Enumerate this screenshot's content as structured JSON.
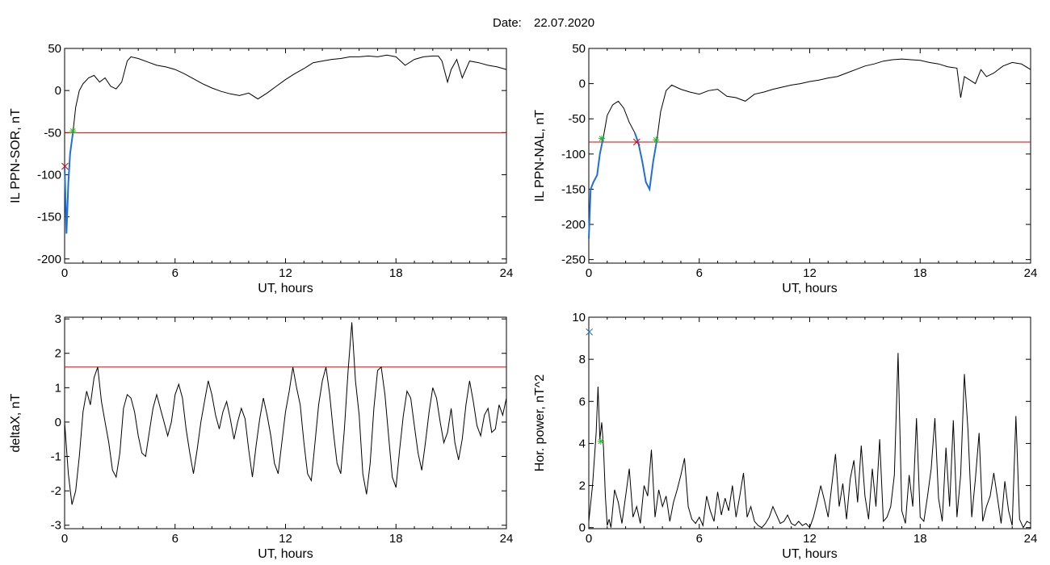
{
  "header": {
    "date_label": "Date:",
    "date_value": "22.07.2020"
  },
  "colors": {
    "data_line": "#000000",
    "threshold_line": "#e00000",
    "interval_line": "#1e6fd9",
    "start_marker": "#22bb22",
    "end_marker": "#e00000"
  },
  "chart_data": [
    {
      "type": "line",
      "xlabel": "UT, hours",
      "ylabel": "IL PPN-SOR, nT",
      "xlim": [
        0,
        24
      ],
      "ylim": [
        -205,
        50
      ],
      "xticks": [
        0,
        6,
        12,
        18,
        24
      ],
      "yticks": [
        -200,
        -150,
        -100,
        -50,
        0,
        50
      ],
      "threshold": -50,
      "x": [
        0,
        0.1,
        0.2,
        0.3,
        0.45,
        0.6,
        0.8,
        1.0,
        1.3,
        1.6,
        1.9,
        2.2,
        2.5,
        2.8,
        3.1,
        3.4,
        3.6,
        4.0,
        4.5,
        5.0,
        5.5,
        6.0,
        6.5,
        7.0,
        7.5,
        8.0,
        8.5,
        9.0,
        9.5,
        10.0,
        10.5,
        11.0,
        11.5,
        12.0,
        12.5,
        13.0,
        13.5,
        14.0,
        14.5,
        15.0,
        15.5,
        16.0,
        16.5,
        17.0,
        17.5,
        18.0,
        18.5,
        19.0,
        19.5,
        20.0,
        20.3,
        20.5,
        20.8,
        21.0,
        21.3,
        21.6,
        22.0,
        22.5,
        23.0,
        23.5,
        24.0
      ],
      "y": [
        -90,
        -170,
        -110,
        -75,
        -50,
        -20,
        0,
        8,
        15,
        18,
        10,
        15,
        5,
        2,
        10,
        35,
        40,
        38,
        34,
        30,
        28,
        25,
        20,
        14,
        8,
        3,
        -1,
        -4,
        -6,
        -3,
        -10,
        -3,
        5,
        13,
        20,
        26,
        33,
        35,
        37,
        38,
        40,
        40,
        41,
        40,
        42,
        40,
        30,
        37,
        40,
        41,
        41,
        35,
        10,
        25,
        37,
        15,
        35,
        33,
        30,
        28,
        25
      ],
      "interval_x": [
        0,
        0.1,
        0.2,
        0.3,
        0.45
      ],
      "interval_y": [
        -90,
        -170,
        -110,
        -75,
        -50
      ],
      "start_markers": [
        {
          "x": 0.45,
          "y": -48
        }
      ],
      "end_markers": [
        {
          "x": 0.02,
          "y": -90
        }
      ]
    },
    {
      "type": "line",
      "xlabel": "UT, hours",
      "ylabel": "IL PPN-NAL, nT",
      "xlim": [
        0,
        24
      ],
      "ylim": [
        -255,
        50
      ],
      "xticks": [
        0,
        6,
        12,
        18,
        24
      ],
      "yticks": [
        -250,
        -200,
        -150,
        -100,
        -50,
        0,
        50
      ],
      "threshold": -83,
      "x": [
        0,
        0.1,
        0.25,
        0.45,
        0.6,
        0.8,
        1.0,
        1.3,
        1.6,
        1.9,
        2.2,
        2.5,
        2.7,
        2.9,
        3.1,
        3.3,
        3.5,
        3.7,
        3.9,
        4.2,
        4.5,
        5.0,
        5.5,
        6.0,
        6.5,
        7.0,
        7.5,
        8.0,
        8.5,
        9.0,
        9.5,
        10.0,
        10.5,
        11.0,
        11.5,
        12.0,
        12.5,
        13.0,
        13.5,
        14.0,
        14.5,
        15.0,
        15.5,
        16.0,
        16.5,
        17.0,
        17.5,
        18.0,
        18.5,
        19.0,
        19.5,
        20.0,
        20.2,
        20.4,
        20.7,
        21.0,
        21.3,
        21.6,
        22.0,
        22.5,
        23.0,
        23.5,
        24.0
      ],
      "y": [
        -220,
        -150,
        -140,
        -130,
        -100,
        -75,
        -45,
        -30,
        -25,
        -35,
        -55,
        -70,
        -85,
        -110,
        -140,
        -150,
        -110,
        -80,
        -40,
        -10,
        -2,
        -8,
        -12,
        -15,
        -10,
        -8,
        -18,
        -20,
        -25,
        -15,
        -12,
        -8,
        -5,
        -2,
        0,
        3,
        5,
        8,
        10,
        15,
        20,
        25,
        28,
        32,
        34,
        35,
        34,
        33,
        30,
        28,
        24,
        22,
        -20,
        10,
        5,
        0,
        20,
        10,
        15,
        25,
        30,
        28,
        20
      ],
      "interval_x": [
        0,
        0.1,
        0.25,
        0.45,
        0.6,
        0.8,
        2.5,
        2.7,
        2.9,
        3.1,
        3.3,
        3.5,
        3.7
      ],
      "interval_y": [
        -220,
        -150,
        -140,
        -130,
        -100,
        -75,
        -70,
        -85,
        -110,
        -140,
        -150,
        -110,
        -80
      ],
      "start_markers": [
        {
          "x": 0.7,
          "y": -78
        },
        {
          "x": 3.65,
          "y": -80
        }
      ],
      "end_markers": [
        {
          "x": 2.6,
          "y": -83
        }
      ]
    },
    {
      "type": "line",
      "xlabel": "UT, hours",
      "ylabel": "deltaX, nT",
      "xlim": [
        0,
        24
      ],
      "ylim": [
        -3.1,
        3.05
      ],
      "xticks": [
        0,
        6,
        12,
        18,
        24
      ],
      "yticks": [
        -3,
        -2,
        -1,
        0,
        1,
        2,
        3
      ],
      "threshold": 1.6,
      "x": [
        0,
        0.2,
        0.4,
        0.6,
        0.8,
        1.0,
        1.2,
        1.4,
        1.6,
        1.8,
        2.0,
        2.2,
        2.4,
        2.6,
        2.8,
        3.0,
        3.2,
        3.4,
        3.6,
        3.8,
        4.0,
        4.2,
        4.4,
        4.6,
        4.8,
        5.0,
        5.2,
        5.4,
        5.6,
        5.8,
        6.0,
        6.2,
        6.4,
        6.6,
        6.8,
        7.0,
        7.2,
        7.4,
        7.6,
        7.8,
        8.0,
        8.2,
        8.4,
        8.6,
        8.8,
        9.0,
        9.2,
        9.4,
        9.6,
        9.8,
        10.0,
        10.2,
        10.4,
        10.6,
        10.8,
        11.0,
        11.2,
        11.4,
        11.6,
        11.8,
        12.0,
        12.2,
        12.4,
        12.6,
        12.8,
        13.0,
        13.2,
        13.4,
        13.6,
        13.8,
        14.0,
        14.2,
        14.4,
        14.6,
        14.8,
        15.0,
        15.2,
        15.4,
        15.6,
        15.8,
        16.0,
        16.2,
        16.4,
        16.6,
        16.8,
        17.0,
        17.2,
        17.4,
        17.6,
        17.8,
        18.0,
        18.2,
        18.4,
        18.6,
        18.8,
        19.0,
        19.2,
        19.4,
        19.6,
        19.8,
        20.0,
        20.2,
        20.4,
        20.6,
        20.8,
        21.0,
        21.2,
        21.4,
        21.6,
        21.8,
        22.0,
        22.2,
        22.4,
        22.6,
        22.8,
        23.0,
        23.2,
        23.4,
        23.6,
        23.8,
        24.0
      ],
      "y": [
        0,
        -1.5,
        -2.4,
        -2.0,
        -1.0,
        0.3,
        0.9,
        0.5,
        1.3,
        1.6,
        0.6,
        0,
        -0.6,
        -1.4,
        -1.6,
        -0.9,
        0.4,
        0.8,
        0.7,
        0.3,
        -0.4,
        -0.9,
        -1.0,
        -0.3,
        0.4,
        0.8,
        0.4,
        0,
        -0.4,
        0,
        0.8,
        1.1,
        0.7,
        -0.2,
        -0.9,
        -1.5,
        -0.8,
        0,
        0.6,
        1.2,
        0.8,
        0.2,
        -0.2,
        0.3,
        0.6,
        0.1,
        -0.5,
        0,
        0.4,
        0.1,
        -0.8,
        -1.6,
        -0.7,
        0.1,
        0.7,
        0.2,
        -0.4,
        -1.2,
        -1.5,
        -0.6,
        0.3,
        0.9,
        1.6,
        1.0,
        0.5,
        -0.6,
        -1.5,
        -1.7,
        -0.6,
        0.5,
        1.2,
        1.6,
        0.8,
        -0.3,
        -1.2,
        -1.5,
        -0.2,
        1.5,
        2.9,
        1.2,
        0.2,
        -1.5,
        -2.1,
        -1.2,
        0.4,
        1.5,
        1.6,
        0.8,
        -0.4,
        -1.6,
        -1.9,
        -0.8,
        0.2,
        0.9,
        0.7,
        -0.1,
        -0.9,
        -1.4,
        -0.6,
        0.3,
        1.0,
        0.7,
        0,
        -0.6,
        -0.3,
        0.4,
        -0.6,
        -1.1,
        -0.5,
        0.5,
        1.2,
        0.6,
        -0.1,
        -0.4,
        0.2,
        0.4,
        -0.3,
        -0.2,
        0.5,
        0.2,
        0.7
      ],
      "interval_x": [],
      "interval_y": [],
      "start_markers": [],
      "end_markers": []
    },
    {
      "type": "line",
      "xlabel": "UT, hours",
      "ylabel": "Hor. power, nT^2",
      "xlim": [
        0,
        24
      ],
      "ylim": [
        -0.05,
        10
      ],
      "xticks": [
        0,
        6,
        12,
        18,
        24
      ],
      "yticks": [
        0,
        2,
        4,
        6,
        8,
        10
      ],
      "threshold": null,
      "x": [
        0,
        0.2,
        0.4,
        0.5,
        0.6,
        0.7,
        0.8,
        0.9,
        1.0,
        1.1,
        1.2,
        1.4,
        1.6,
        1.8,
        2.0,
        2.2,
        2.4,
        2.6,
        2.8,
        3.0,
        3.2,
        3.4,
        3.6,
        3.8,
        4.0,
        4.2,
        4.4,
        4.6,
        4.8,
        5.0,
        5.2,
        5.4,
        5.6,
        5.8,
        6.0,
        6.2,
        6.4,
        6.6,
        6.8,
        7.0,
        7.2,
        7.4,
        7.6,
        7.8,
        8.0,
        8.2,
        8.4,
        8.6,
        8.8,
        9.0,
        9.2,
        9.4,
        9.6,
        9.8,
        10.0,
        10.2,
        10.4,
        10.6,
        10.8,
        11.0,
        11.2,
        11.4,
        11.6,
        11.8,
        12.0,
        12.2,
        12.4,
        12.6,
        12.8,
        13.0,
        13.2,
        13.4,
        13.6,
        13.8,
        14.0,
        14.2,
        14.4,
        14.6,
        14.8,
        15.0,
        15.2,
        15.4,
        15.6,
        15.8,
        16.0,
        16.2,
        16.4,
        16.6,
        16.8,
        17.0,
        17.2,
        17.4,
        17.6,
        17.8,
        18.0,
        18.2,
        18.4,
        18.6,
        18.8,
        19.0,
        19.2,
        19.4,
        19.6,
        19.8,
        20.0,
        20.2,
        20.4,
        20.6,
        20.8,
        21.0,
        21.2,
        21.4,
        21.6,
        21.8,
        22.0,
        22.2,
        22.4,
        22.6,
        22.8,
        23.0,
        23.2,
        23.4,
        23.6,
        23.8,
        24.0
      ],
      "y": [
        0.3,
        2.0,
        4.5,
        6.7,
        4.2,
        5.0,
        3.8,
        1.5,
        0.1,
        0.4,
        0,
        1.8,
        1.2,
        0.2,
        1.5,
        2.8,
        0.5,
        1.0,
        0.2,
        2.0,
        1.5,
        3.7,
        0.5,
        1.8,
        1.0,
        1.5,
        0.3,
        1.2,
        1.8,
        2.5,
        3.3,
        1.0,
        0.4,
        0.2,
        0.5,
        0.1,
        1.5,
        0.8,
        0.3,
        1.7,
        0.6,
        1.4,
        0.8,
        2.0,
        0.5,
        1.5,
        2.6,
        0.5,
        1.0,
        0.3,
        0.1,
        0,
        0.2,
        0.5,
        1.0,
        0.6,
        0.2,
        0.3,
        0.6,
        0.2,
        0.1,
        0.3,
        0.1,
        0.2,
        0,
        0.5,
        1.2,
        2.0,
        1.3,
        0.5,
        2.0,
        3.5,
        1.0,
        2.1,
        0.4,
        2.3,
        3.2,
        1.2,
        3.9,
        1.5,
        0.4,
        2.8,
        1.0,
        4.2,
        0.3,
        0.5,
        1.0,
        2.5,
        8.3,
        0.8,
        0.2,
        2.5,
        1.0,
        5.2,
        0.5,
        0.3,
        1.5,
        2.8,
        5.2,
        1.4,
        0.3,
        3.8,
        1.0,
        5.1,
        0.5,
        2.5,
        7.3,
        4.6,
        0.5,
        2.3,
        4.5,
        0.3,
        1.0,
        1.5,
        2.6,
        1.4,
        0.2,
        2.2,
        0.8,
        0.1,
        5.3,
        0.4,
        0,
        0.3,
        0.2
      ],
      "interval_x": [],
      "interval_y": [],
      "start_markers": [
        {
          "x": 0.65,
          "y": 4.1
        }
      ],
      "end_markers": [],
      "extra_markers": [
        {
          "x": 0.03,
          "y": 9.3
        }
      ]
    }
  ]
}
